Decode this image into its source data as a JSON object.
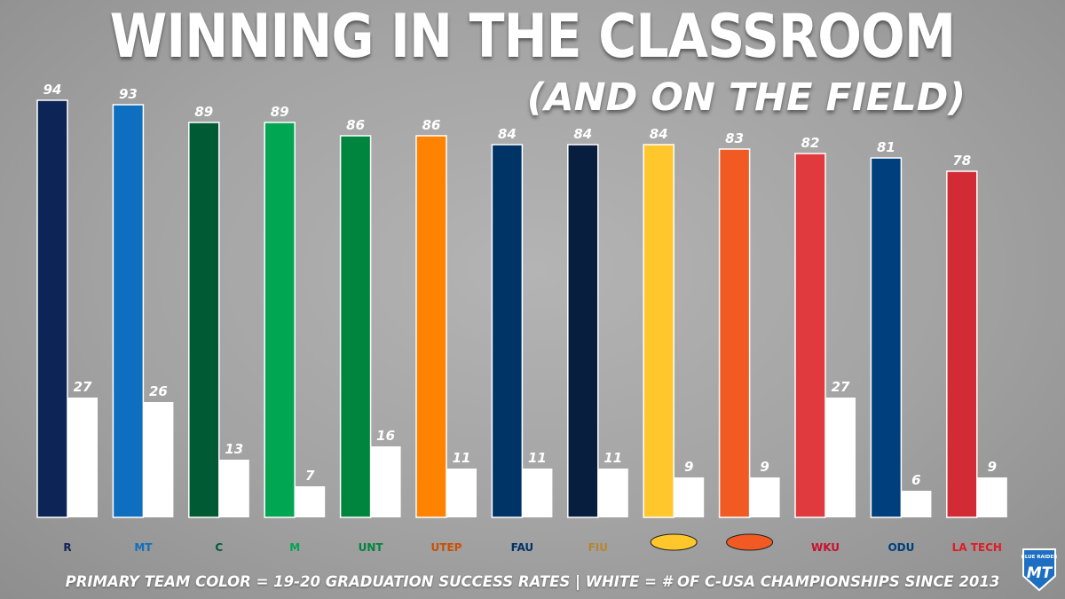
{
  "header": {
    "title": "WINNING IN THE CLASSROOM",
    "subtitle": "(AND ON THE FIELD)"
  },
  "footer": {
    "caption": "PRIMARY TEAM COLOR = 19-20 GRADUATION SUCCESS RATES  |  WHITE = # OF C-USA CHAMPIONSHIPS SINCE 2013"
  },
  "badge": {
    "text": "BLUE RAIDER ATHLETIC ASSOCIATION",
    "monogram": "MT"
  },
  "chart_data": {
    "type": "bar",
    "ylim": [
      0,
      100
    ],
    "categories": [
      "R",
      "MT",
      "C",
      "M",
      "UNT",
      "UTEP",
      "FAU",
      "FIU",
      "",
      "",
      "WKU",
      "ODU",
      "LA TECH"
    ],
    "team_colors": [
      "#0d2456",
      "#0e6fc0",
      "#005b35",
      "#00a651",
      "#00853e",
      "#ff8200",
      "#003366",
      "#081e3f",
      "#ffc72c",
      "#f15a22",
      "#e13a3e",
      "#003f7d",
      "#d22b36"
    ],
    "logo_colors": [
      "#0d2456",
      "#0e6fc0",
      "#005b35",
      "#00a651",
      "#00853e",
      "#cc4f00",
      "#003366",
      "#b6862c",
      "#ffc72c",
      "#f15a22",
      "#c8102e",
      "#003f7d",
      "#e31b23"
    ],
    "series": [
      {
        "values": [
          94,
          93,
          89,
          89,
          86,
          86,
          84,
          84,
          84,
          83,
          82,
          81,
          78
        ]
      },
      {
        "values": [
          27,
          26,
          13,
          7,
          16,
          11,
          11,
          11,
          9,
          9,
          27,
          6,
          9
        ]
      }
    ]
  }
}
